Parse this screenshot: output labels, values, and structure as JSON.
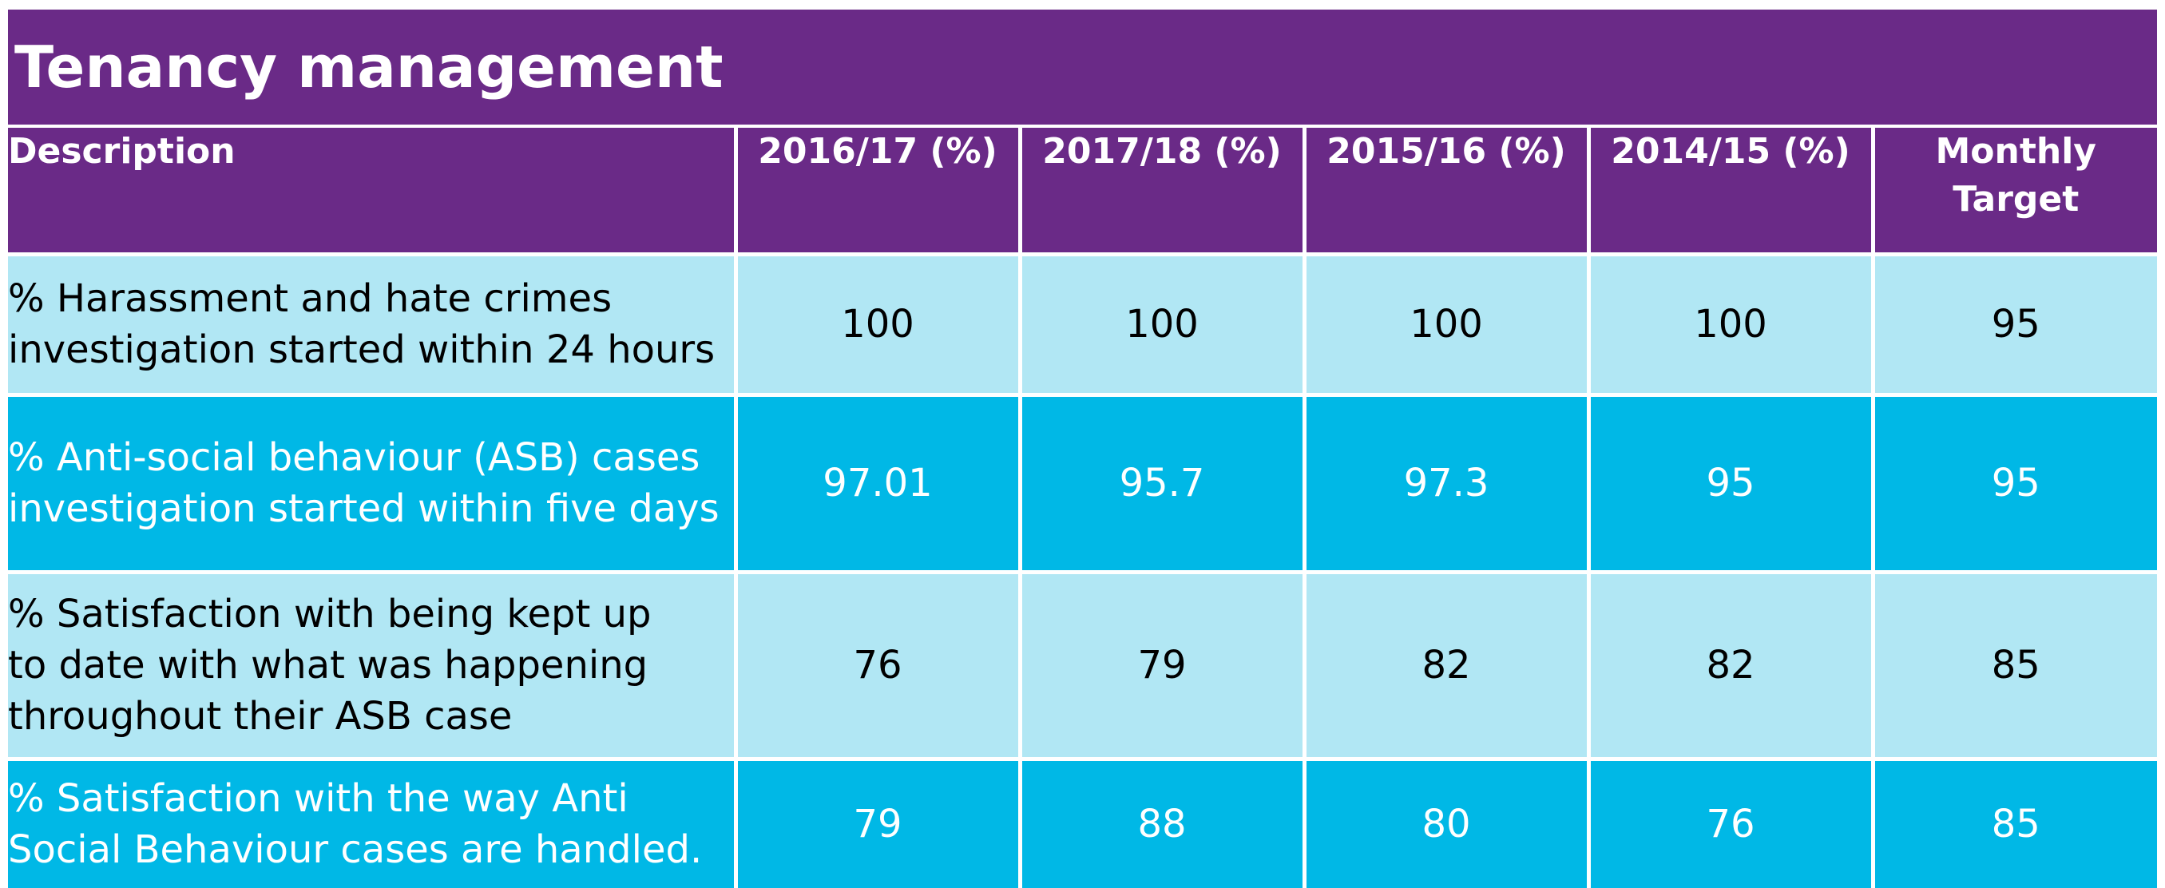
{
  "title": "Tenancy management",
  "colors": {
    "header_purple": "#6a2a87",
    "row_light": "#b1e7f4",
    "row_dark": "#00b8e6",
    "divider": "#ffffff"
  },
  "table": {
    "headers": {
      "description": "Description",
      "col1": "2016/17 (%)",
      "col2": "2017/18 (%)",
      "col3": "2015/16 (%)",
      "col4": "2014/15 (%)",
      "col5_line1": "Monthly",
      "col5_line2": "Target"
    },
    "rows": [
      {
        "description": "% Harassment and hate  crimes\ninvestigation started  within 24 hours",
        "values": [
          "100",
          "100",
          "100",
          "100",
          "95"
        ]
      },
      {
        "description": "% Anti-social behaviour (ASB) cases\ninvestigation started  within five days",
        "values": [
          "97.01",
          "95.7",
          "97.3",
          "95",
          "95"
        ]
      },
      {
        "description": "% Satisfaction with being kept up\nto date with what was happening\nthroughout their ASB case",
        "values": [
          "76",
          "79",
          "82",
          "82",
          "85"
        ]
      },
      {
        "description": "% Satisfaction with the way Anti\nSocial Behaviour cases are handled.",
        "values": [
          "79",
          "88",
          "80",
          "76",
          "85"
        ]
      }
    ]
  }
}
